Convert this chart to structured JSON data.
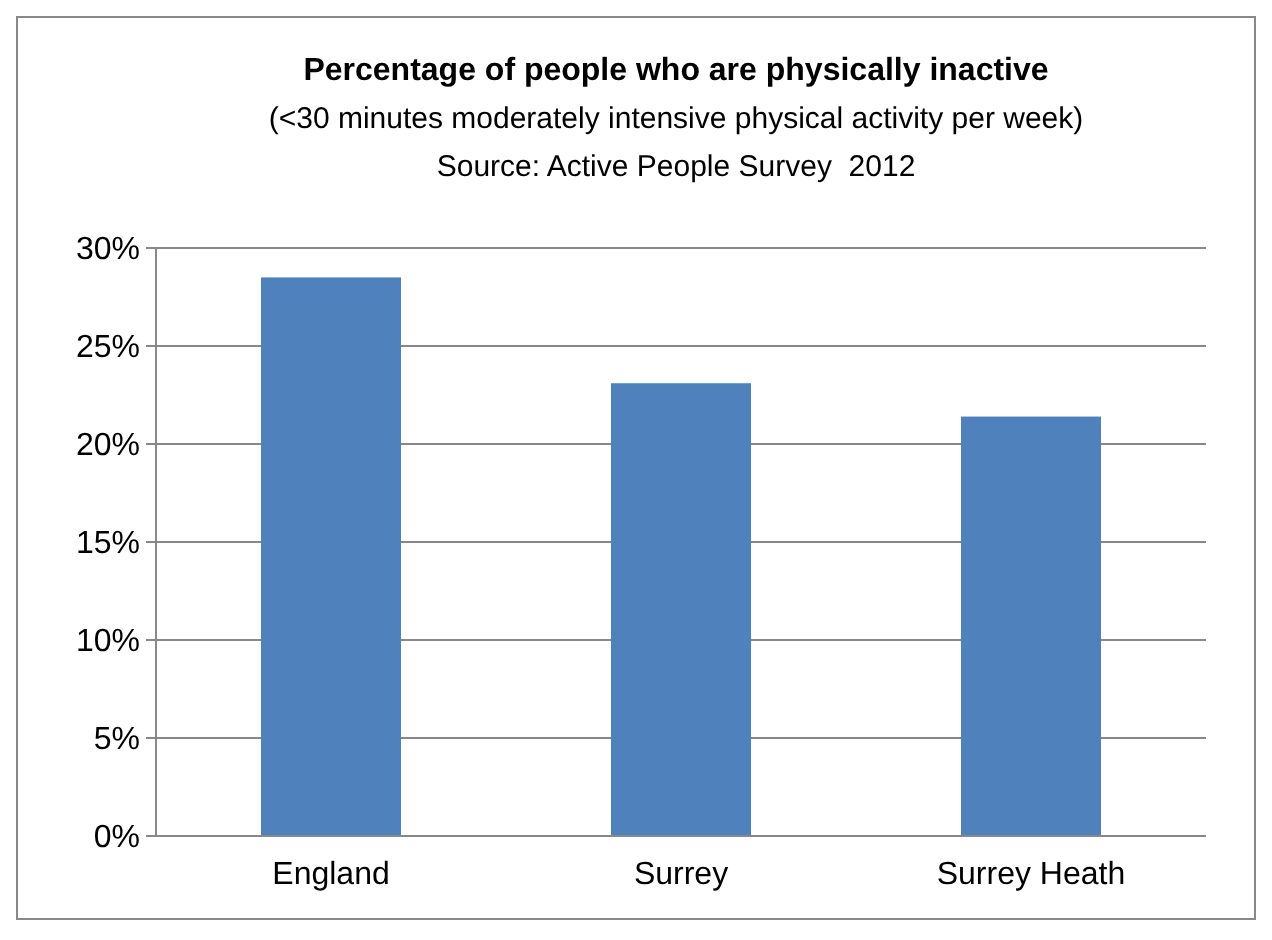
{
  "chart_data": {
    "type": "bar",
    "title": "Percentage of people who are physically inactive",
    "subtitle": "(<30 minutes moderately intensive physical activity per week)",
    "annotations": [
      "Source: Active People Survey  2012"
    ],
    "categories": [
      "England",
      "Surrey",
      "Surrey Heath"
    ],
    "values": [
      28.5,
      23.1,
      21.4
    ],
    "color": "#4f81bd",
    "ylim": [
      0,
      30
    ],
    "yticks": [
      {
        "value": 0,
        "label": "0%"
      },
      {
        "value": 5,
        "label": "5%"
      },
      {
        "value": 10,
        "label": "10%"
      },
      {
        "value": 15,
        "label": "15%"
      },
      {
        "value": 20,
        "label": "20%"
      },
      {
        "value": 25,
        "label": "25%"
      },
      {
        "value": 30,
        "label": "30%"
      }
    ],
    "grid": "y"
  }
}
